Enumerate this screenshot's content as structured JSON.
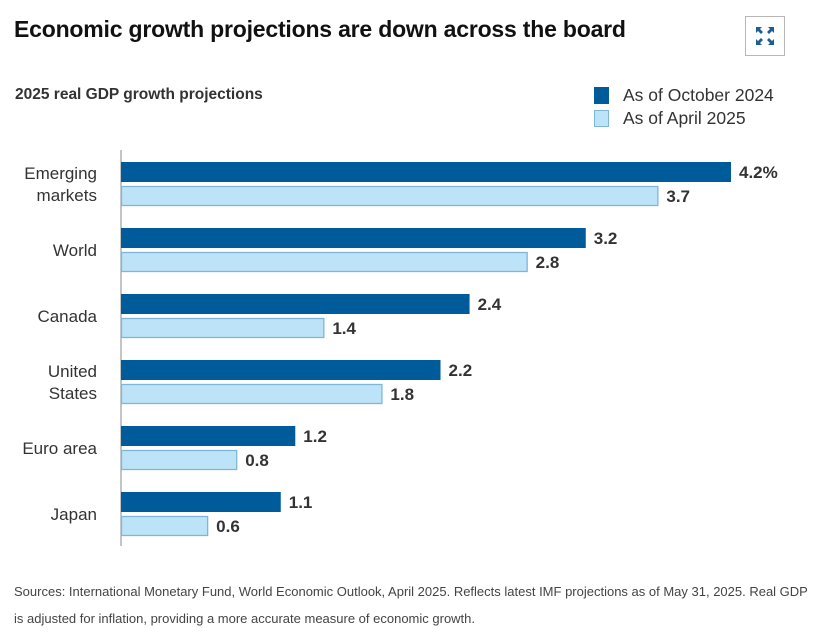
{
  "header": {
    "title": "Economic growth projections are down across the board",
    "expand_icon": "expand-arrows-icon"
  },
  "colors": {
    "october_2024": "#005b9a",
    "april_2025": "#bde3f8",
    "april_2025_border": "#7fb6d8",
    "axis": "#888888",
    "label_text": "#333333"
  },
  "chart_data": {
    "type": "bar",
    "orientation": "horizontal",
    "title": "2025 real GDP growth projections",
    "xlabel": "",
    "ylabel": "",
    "unit": "%",
    "categories": [
      "Emerging markets",
      "World",
      "Canada",
      "United States",
      "Euro area",
      "Japan"
    ],
    "category_lines": [
      [
        "Emerging",
        "markets"
      ],
      [
        "World"
      ],
      [
        "Canada"
      ],
      [
        "United",
        "States"
      ],
      [
        "Euro area"
      ],
      [
        "Japan"
      ]
    ],
    "series": [
      {
        "name": "As of October 2024",
        "values": [
          4.2,
          3.2,
          2.4,
          2.2,
          1.2,
          1.1
        ],
        "labels": [
          "4.2%",
          "3.2",
          "2.4",
          "2.2",
          "1.2",
          "1.1"
        ]
      },
      {
        "name": "As of April 2025",
        "values": [
          3.7,
          2.8,
          1.4,
          1.8,
          0.8,
          0.6
        ],
        "labels": [
          "3.7",
          "2.8",
          "1.4",
          "1.8",
          "0.8",
          "0.6"
        ]
      }
    ],
    "xlim": [
      0,
      4.2
    ],
    "grid": false,
    "legend_position": "top-right"
  },
  "footer": {
    "sources": "Sources: International Monetary Fund, World Economic Outlook, April 2025. Reflects latest IMF projections as of May 31, 2025. Real GDP is adjusted for inflation, providing a more accurate measure of economic growth."
  }
}
